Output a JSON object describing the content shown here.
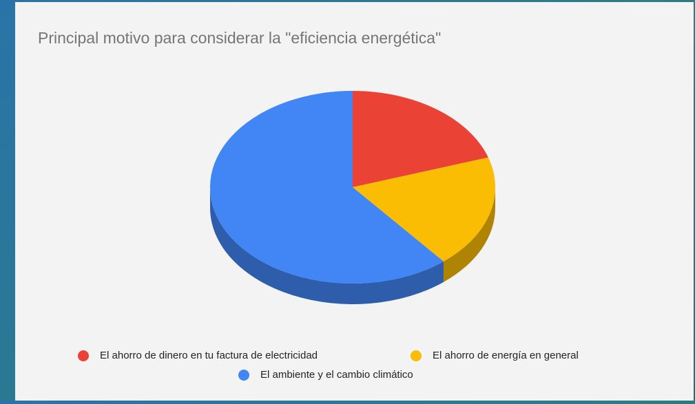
{
  "chart_data": {
    "type": "pie",
    "title": "Principal motivo para considerar la \"eficiencia energética\"",
    "categories": [
      "El ahorro de dinero en tu factura de electricidad",
      "El ahorro de energía en general",
      "El ambiente y el cambio climático"
    ],
    "values": [
      20,
      19,
      61
    ],
    "colors": [
      "#ea4335",
      "#fbbc04",
      "#4285f4"
    ],
    "legend": "bottom"
  }
}
